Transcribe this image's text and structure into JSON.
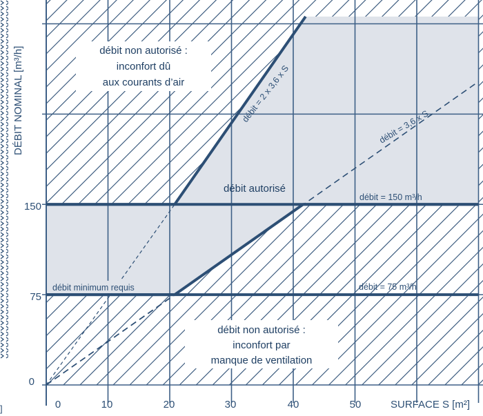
{
  "chart_data": {
    "type": "area",
    "title": "",
    "xlabel": "SURFACE S [m²]",
    "ylabel": "DÉBIT NOMINAL  [m³/h]",
    "x_ticks": [
      "0",
      "10",
      "20",
      "30",
      "40",
      "50"
    ],
    "y_ticks": [
      "0",
      "75",
      "150"
    ],
    "x_range": [
      0,
      70
    ],
    "y_range": [
      0,
      300
    ],
    "grid": true,
    "colors": {
      "line": "#2d4f75",
      "grid": "#3d5f86",
      "allowed_fill": "#dfe3ea",
      "hatch_bg": "#ffffff"
    },
    "series": [
      {
        "name": "débit = 2 x 3,6 x S",
        "style": "solid-thick",
        "points": [
          [
            0,
            150
          ],
          [
            20.8,
            150
          ],
          [
            42,
            306
          ]
        ]
      },
      {
        "name": "débit minimum requis",
        "style": "solid-thick",
        "points": [
          [
            0,
            75
          ],
          [
            20.8,
            75
          ],
          [
            41.6,
            150
          ],
          [
            70,
            150
          ]
        ]
      },
      {
        "name": "débit = 3,6 x S",
        "style": "dashed",
        "points": [
          [
            0,
            0
          ],
          [
            70,
            252
          ]
        ]
      },
      {
        "name": "dashed-steep",
        "style": "dashed-thin",
        "points": [
          [
            0,
            0
          ],
          [
            20.8,
            150
          ]
        ]
      },
      {
        "name": "dashed-lower",
        "style": "dashed",
        "points": [
          [
            0,
            0
          ],
          [
            20.8,
            75
          ]
        ]
      },
      {
        "name": "débit = 75 m³/h",
        "style": "solid-thick",
        "points": [
          [
            0,
            75
          ],
          [
            70,
            75
          ]
        ]
      },
      {
        "name": "débit = 150 m³/h",
        "style": "solid-thick",
        "points": [
          [
            0,
            150
          ],
          [
            70,
            150
          ]
        ]
      }
    ],
    "regions": [
      {
        "name": "upper-forbidden",
        "text": [
          "débit non autorisé :",
          "inconfort dû",
          "aux courants d’air"
        ]
      },
      {
        "name": "allowed",
        "text": [
          "débit autorisé"
        ]
      },
      {
        "name": "lower-forbidden",
        "text": [
          "débit non autorisé :",
          "inconfort par",
          "manque de ventilation"
        ]
      }
    ],
    "annotations": {
      "steep": "débit = 2 x 3,6 x S",
      "diag": "débit = 3,6 x S",
      "h150": "débit = 150 m³/h",
      "h75": "débit = 75 m³/h",
      "min": "débit minimum requis"
    }
  }
}
